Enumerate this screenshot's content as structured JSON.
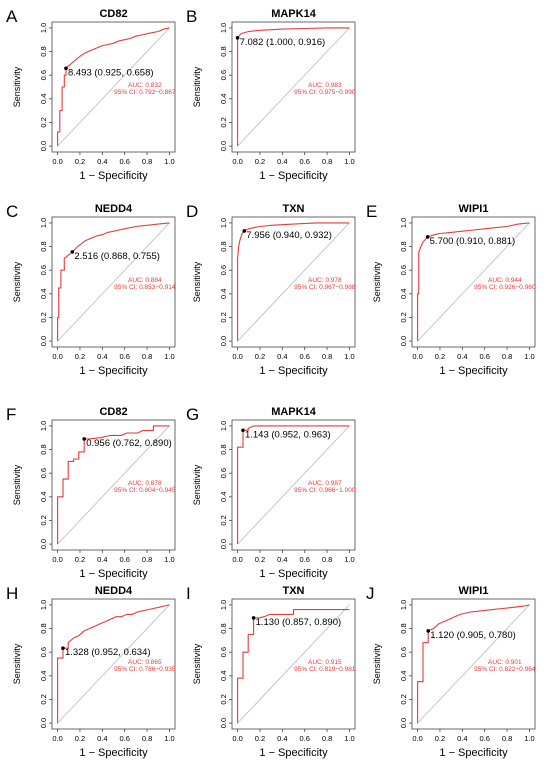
{
  "chart_data": [
    {
      "panel": "A",
      "type": "line",
      "title": "CD82",
      "xlabel": "1 − Specificity",
      "ylabel": "Sensitivity",
      "xlim": [
        -0.05,
        1.05
      ],
      "ylim": [
        -0.05,
        1.05
      ],
      "xticks": [
        "0.0",
        "0.2",
        "0.4",
        "0.6",
        "0.8",
        "1.0"
      ],
      "yticks": [
        "0.0",
        "0.2",
        "0.4",
        "0.6",
        "0.8",
        "1.0"
      ],
      "point": {
        "x": 0.075,
        "y": 0.658
      },
      "point_label": "8.493 (0.925, 0.658)",
      "auc_label": "AUC: 0.832",
      "ci_label": "95% CI: 0.792−0.867",
      "x": [
        0,
        0,
        0.02,
        0.02,
        0.04,
        0.04,
        0.06,
        0.06,
        0.075,
        0.075,
        0.1,
        0.15,
        0.2,
        0.25,
        0.3,
        0.35,
        0.4,
        0.45,
        0.5,
        0.55,
        0.6,
        0.65,
        0.7,
        0.75,
        0.8,
        0.85,
        0.9,
        0.95,
        1.0
      ],
      "y": [
        0,
        0.12,
        0.12,
        0.3,
        0.3,
        0.5,
        0.5,
        0.6,
        0.6,
        0.658,
        0.68,
        0.72,
        0.76,
        0.79,
        0.81,
        0.83,
        0.85,
        0.86,
        0.87,
        0.89,
        0.9,
        0.91,
        0.93,
        0.94,
        0.95,
        0.96,
        0.97,
        0.99,
        1.0
      ]
    },
    {
      "panel": "B",
      "type": "line",
      "title": "MAPK14",
      "xlabel": "1 − Specificity",
      "ylabel": "Sensitivity",
      "xlim": [
        -0.05,
        1.05
      ],
      "ylim": [
        -0.05,
        1.05
      ],
      "xticks": [
        "0.0",
        "0.2",
        "0.4",
        "0.6",
        "0.8",
        "1.0"
      ],
      "yticks": [
        "0.0",
        "0.2",
        "0.4",
        "0.6",
        "0.8",
        "1.0"
      ],
      "point": {
        "x": 0.0,
        "y": 0.916
      },
      "point_label": "7.082 (1.000, 0.916)",
      "auc_label": "AUC: 0.983",
      "ci_label": "95% CI: 0.975−0.990",
      "x": [
        0,
        0,
        0.01,
        0.03,
        0.06,
        0.1,
        0.2,
        0.3,
        0.4,
        0.6,
        0.8,
        1.0
      ],
      "y": [
        0,
        0.916,
        0.93,
        0.95,
        0.96,
        0.97,
        0.98,
        0.985,
        0.99,
        0.995,
        1.0,
        1.0
      ]
    },
    {
      "panel": "C",
      "type": "line",
      "title": "NEDD4",
      "xlabel": "1 − Specificity",
      "ylabel": "Sensitivity",
      "xlim": [
        -0.05,
        1.05
      ],
      "ylim": [
        -0.05,
        1.05
      ],
      "xticks": [
        "0.0",
        "0.2",
        "0.4",
        "0.6",
        "0.8",
        "1.0"
      ],
      "yticks": [
        "0.0",
        "0.2",
        "0.4",
        "0.6",
        "0.8",
        "1.0"
      ],
      "point": {
        "x": 0.132,
        "y": 0.755
      },
      "point_label": "2.516 (0.868, 0.755)",
      "auc_label": "AUC: 0.884",
      "ci_label": "95% CI: 0.853−0.914",
      "x": [
        0,
        0,
        0.01,
        0.01,
        0.03,
        0.03,
        0.06,
        0.06,
        0.1,
        0.132,
        0.18,
        0.25,
        0.3,
        0.35,
        0.4,
        0.45,
        0.5,
        0.55,
        0.6,
        0.7,
        0.8,
        0.9,
        1.0
      ],
      "y": [
        0,
        0.2,
        0.2,
        0.45,
        0.45,
        0.6,
        0.6,
        0.7,
        0.73,
        0.755,
        0.8,
        0.85,
        0.87,
        0.89,
        0.9,
        0.92,
        0.93,
        0.94,
        0.95,
        0.97,
        0.98,
        0.99,
        1.0
      ]
    },
    {
      "panel": "D",
      "type": "line",
      "title": "TXN",
      "xlabel": "1 − Specificity",
      "ylabel": "Sensitivity",
      "xlim": [
        -0.05,
        1.05
      ],
      "ylim": [
        -0.05,
        1.05
      ],
      "xticks": [
        "0.0",
        "0.2",
        "0.4",
        "0.6",
        "0.8",
        "1.0"
      ],
      "yticks": [
        "0.0",
        "0.2",
        "0.4",
        "0.6",
        "0.8",
        "1.0"
      ],
      "point": {
        "x": 0.06,
        "y": 0.932
      },
      "point_label": "7.956 (0.940, 0.932)",
      "auc_label": "AUC: 0.978",
      "ci_label": "95% CI: 0.967−0.988",
      "x": [
        0,
        0,
        0.01,
        0.02,
        0.03,
        0.04,
        0.06,
        0.1,
        0.15,
        0.2,
        0.3,
        0.5,
        0.7,
        1.0
      ],
      "y": [
        0,
        0.7,
        0.8,
        0.85,
        0.88,
        0.91,
        0.932,
        0.95,
        0.96,
        0.97,
        0.98,
        0.99,
        1.0,
        1.0
      ]
    },
    {
      "panel": "E",
      "type": "line",
      "title": "WIPI1",
      "xlabel": "1 − Specificity",
      "ylabel": "Sensitivity",
      "xlim": [
        -0.05,
        1.05
      ],
      "ylim": [
        -0.05,
        1.05
      ],
      "xticks": [
        "0.0",
        "0.2",
        "0.4",
        "0.6",
        "0.8",
        "1.0"
      ],
      "yticks": [
        "0.0",
        "0.2",
        "0.4",
        "0.6",
        "0.8",
        "1.0"
      ],
      "point": {
        "x": 0.09,
        "y": 0.881
      },
      "point_label": "5.700 (0.910, 0.881)",
      "auc_label": "AUC: 0.944",
      "ci_label": "95% CI: 0.926−0.960",
      "x": [
        0,
        0,
        0.01,
        0.01,
        0.03,
        0.05,
        0.09,
        0.15,
        0.2,
        0.3,
        0.4,
        0.5,
        0.6,
        0.7,
        0.8,
        0.9,
        1.0
      ],
      "y": [
        0,
        0.4,
        0.4,
        0.75,
        0.8,
        0.84,
        0.881,
        0.9,
        0.91,
        0.92,
        0.93,
        0.94,
        0.95,
        0.96,
        0.97,
        0.99,
        1.0
      ]
    },
    {
      "panel": "F",
      "type": "line",
      "title": "CD82",
      "xlabel": "1 − Specificity",
      "ylabel": "Sensitivity",
      "xlim": [
        -0.05,
        1.05
      ],
      "ylim": [
        -0.05,
        1.05
      ],
      "xticks": [
        "0.0",
        "0.2",
        "0.4",
        "0.6",
        "0.8",
        "1.0"
      ],
      "yticks": [
        "0.0",
        "0.2",
        "0.4",
        "0.6",
        "0.8",
        "1.0"
      ],
      "point": {
        "x": 0.238,
        "y": 0.89
      },
      "point_label": "0.956 (0.762, 0.890)",
      "auc_label": "AUC: 0.878",
      "ci_label": "95% CI: 0.804−0.945",
      "x": [
        0,
        0,
        0.048,
        0.048,
        0.095,
        0.095,
        0.143,
        0.143,
        0.19,
        0.19,
        0.238,
        0.238,
        0.286,
        0.381,
        0.476,
        0.571,
        0.619,
        0.714,
        0.762,
        0.81,
        0.857,
        0.857,
        1.0
      ],
      "y": [
        0,
        0.4,
        0.4,
        0.55,
        0.55,
        0.7,
        0.7,
        0.72,
        0.72,
        0.78,
        0.78,
        0.89,
        0.89,
        0.9,
        0.92,
        0.92,
        0.94,
        0.94,
        0.96,
        0.96,
        0.96,
        1.0,
        1.0
      ]
    },
    {
      "panel": "G",
      "type": "line",
      "title": "MAPK14",
      "xlabel": "1 − Specificity",
      "ylabel": "Sensitivity",
      "xlim": [
        -0.05,
        1.05
      ],
      "ylim": [
        -0.05,
        1.05
      ],
      "xticks": [
        "0.0",
        "0.2",
        "0.4",
        "0.6",
        "0.8",
        "1.0"
      ],
      "yticks": [
        "0.0",
        "0.2",
        "0.4",
        "0.6",
        "0.8",
        "1.0"
      ],
      "point": {
        "x": 0.048,
        "y": 0.963
      },
      "point_label": "1.143 (0.952, 0.963)",
      "auc_label": "AUC: 0.987",
      "ci_label": "95% CI: 0.966−1.000",
      "x": [
        0,
        0,
        0.048,
        0.048,
        0.095,
        0.095,
        0.143,
        1.0
      ],
      "y": [
        0,
        0.82,
        0.82,
        0.963,
        0.963,
        0.98,
        1.0,
        1.0
      ]
    },
    {
      "panel": "H",
      "type": "line",
      "title": "NEDD4",
      "xlabel": "1 − Specificity",
      "ylabel": "Sensitivity",
      "xlim": [
        -0.05,
        1.05
      ],
      "ylim": [
        -0.05,
        1.05
      ],
      "xticks": [
        "0.0",
        "0.2",
        "0.4",
        "0.6",
        "0.8",
        "1.0"
      ],
      "yticks": [
        "0.0",
        "0.2",
        "0.4",
        "0.6",
        "0.8",
        "1.0"
      ],
      "point": {
        "x": 0.048,
        "y": 0.634
      },
      "point_label": "1.328 (0.952, 0.634)",
      "auc_label": "AUC: 0.865",
      "ci_label": "95% CI: 0.786−0.935",
      "x": [
        0,
        0,
        0.048,
        0.048,
        0.095,
        0.095,
        0.143,
        0.19,
        0.238,
        0.286,
        0.333,
        0.381,
        0.429,
        0.476,
        0.524,
        0.571,
        0.619,
        0.667,
        0.714,
        0.762,
        0.81,
        0.857,
        0.905,
        0.952,
        1.0
      ],
      "y": [
        0,
        0.55,
        0.55,
        0.634,
        0.634,
        0.68,
        0.72,
        0.74,
        0.78,
        0.8,
        0.82,
        0.84,
        0.86,
        0.88,
        0.9,
        0.9,
        0.92,
        0.92,
        0.94,
        0.95,
        0.96,
        0.97,
        0.98,
        0.99,
        1.0
      ]
    },
    {
      "panel": "I",
      "type": "line",
      "title": "TXN",
      "xlabel": "1 − Specificity",
      "ylabel": "Sensitivity",
      "xlim": [
        -0.05,
        1.05
      ],
      "ylim": [
        -0.05,
        1.05
      ],
      "xticks": [
        "0.0",
        "0.2",
        "0.4",
        "0.6",
        "0.8",
        "1.0"
      ],
      "yticks": [
        "0.0",
        "0.2",
        "0.4",
        "0.6",
        "0.8",
        "1.0"
      ],
      "point": {
        "x": 0.143,
        "y": 0.89
      },
      "point_label": "1.130 (0.857, 0.890)",
      "auc_label": "AUC: 0.915",
      "ci_label": "95% CI: 0.819−0.981",
      "x": [
        0,
        0,
        0.048,
        0.048,
        0.095,
        0.095,
        0.143,
        0.143,
        0.19,
        0.238,
        0.286,
        0.5,
        0.5,
        1.0
      ],
      "y": [
        0,
        0.38,
        0.38,
        0.6,
        0.6,
        0.75,
        0.75,
        0.89,
        0.89,
        0.9,
        0.92,
        0.92,
        0.96,
        0.96
      ]
    },
    {
      "panel": "J",
      "type": "line",
      "title": "WIPI1",
      "xlabel": "1 − Specificity",
      "ylabel": "Sensitivity",
      "xlim": [
        -0.05,
        1.05
      ],
      "ylim": [
        -0.05,
        1.05
      ],
      "xticks": [
        "0.0",
        "0.2",
        "0.4",
        "0.6",
        "0.8",
        "1.0"
      ],
      "yticks": [
        "0.0",
        "0.2",
        "0.4",
        "0.6",
        "0.8",
        "1.0"
      ],
      "point": {
        "x": 0.095,
        "y": 0.78
      },
      "point_label": "1.120 (0.905, 0.780)",
      "auc_label": "AUC: 0.901",
      "ci_label": "95% CI: 0.822−0.964",
      "x": [
        0,
        0,
        0.048,
        0.048,
        0.095,
        0.095,
        0.143,
        0.19,
        0.238,
        0.286,
        0.333,
        0.381,
        0.476,
        0.571,
        0.667,
        0.762,
        0.857,
        0.952,
        1.0
      ],
      "y": [
        0,
        0.35,
        0.35,
        0.68,
        0.68,
        0.78,
        0.8,
        0.84,
        0.86,
        0.88,
        0.9,
        0.92,
        0.94,
        0.95,
        0.96,
        0.97,
        0.98,
        0.99,
        1.0
      ]
    }
  ],
  "colors": {
    "roc_line": "#e63b3b",
    "diagonal": "#b9b9b9",
    "axis": "#444444",
    "text": "#000000"
  }
}
